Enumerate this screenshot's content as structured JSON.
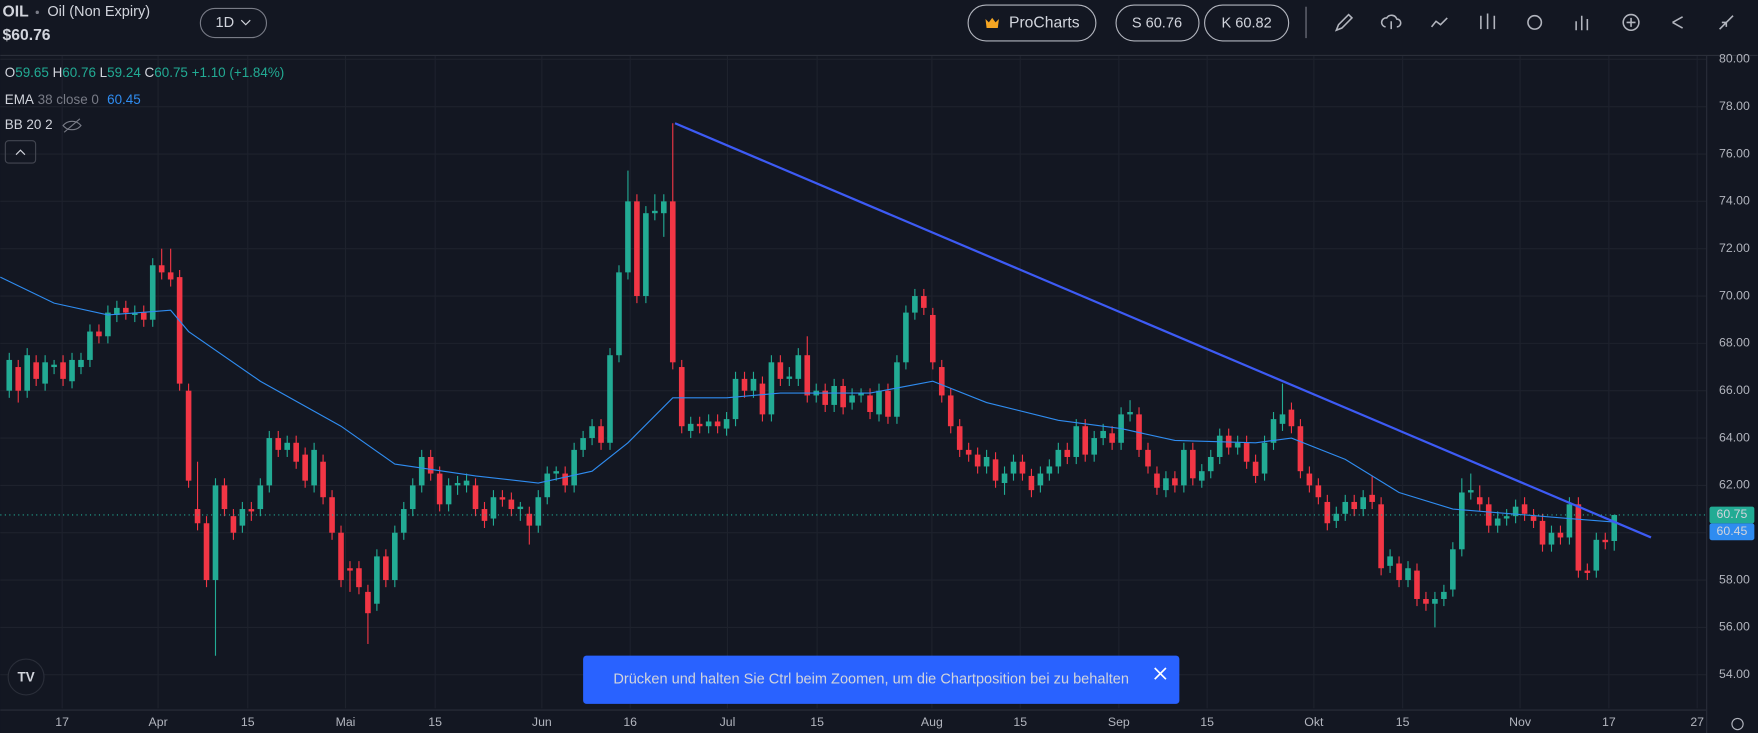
{
  "header": {
    "symbol": "OIL",
    "name": "Oil (Non Expiry)",
    "price": "$60.76",
    "interval": "1D",
    "procharts": "ProCharts",
    "sell": "S 60.76",
    "buy": "K 60.82"
  },
  "legend": {
    "labels": [
      "O",
      "H",
      "L",
      "C"
    ],
    "change": "+1.10 (+1.84%)",
    "ema_name": "EMA",
    "ema_params": "38 close 0",
    "bb": "BB 20 2"
  },
  "toast": "Drücken und halten Sie Ctrl beim Zoomen, um die Chartposition bei zu behalten",
  "chart_data": {
    "type": "candlestick",
    "up_color": "#22ab94",
    "down_color": "#f23645",
    "xlim": [
      -1,
      189.25
    ],
    "ylim": [
      52.58,
      80.14
    ],
    "grid": true,
    "yticks": [
      {
        "value": 54,
        "label": "54.00"
      },
      {
        "value": 56,
        "label": "56.00"
      },
      {
        "value": 58,
        "label": "58.00"
      },
      {
        "value": 60,
        "label": "60.00"
      },
      {
        "value": 62,
        "label": "62.00"
      },
      {
        "value": 64,
        "label": "64.00"
      },
      {
        "value": 66,
        "label": "66.00"
      },
      {
        "value": 68,
        "label": "68.00"
      },
      {
        "value": 70,
        "label": "70.00"
      },
      {
        "value": 72,
        "label": "72.00"
      },
      {
        "value": 74,
        "label": "74.00"
      },
      {
        "value": 76,
        "label": "76.00"
      },
      {
        "value": 78,
        "label": "78.00"
      },
      {
        "value": 80,
        "label": "80.00"
      }
    ],
    "xticks": [
      {
        "value": 5.9,
        "label": "17"
      },
      {
        "value": 16.6,
        "label": "Apr"
      },
      {
        "value": 26.6,
        "label": "15"
      },
      {
        "value": 37.5,
        "label": "Mai"
      },
      {
        "value": 47.5,
        "label": "15"
      },
      {
        "value": 59.4,
        "label": "Jun"
      },
      {
        "value": 69.25,
        "label": "16"
      },
      {
        "value": 80.1,
        "label": "Jul"
      },
      {
        "value": 90.1,
        "label": "15"
      },
      {
        "value": 102.9,
        "label": "Aug"
      },
      {
        "value": 112.75,
        "label": "15"
      },
      {
        "value": 123.75,
        "label": "Sep"
      },
      {
        "value": 133.6,
        "label": "15"
      },
      {
        "value": 145.5,
        "label": "Okt"
      },
      {
        "value": 155.4,
        "label": "15"
      },
      {
        "value": 168.5,
        "label": "Nov"
      },
      {
        "value": 178.4,
        "label": "17"
      },
      {
        "value": 188.25,
        "label": "27"
      }
    ],
    "candles": [
      [
        66,
        67.6,
        65.7,
        67.3
      ],
      [
        67,
        67.3,
        65.5,
        66
      ],
      [
        66,
        67.8,
        65.7,
        67.5
      ],
      [
        67.2,
        67.5,
        66.2,
        66.5
      ],
      [
        66.3,
        67.5,
        66,
        67.2
      ],
      [
        67,
        67.3,
        66.7,
        67.1
      ],
      [
        67.2,
        67.5,
        66.2,
        66.5
      ],
      [
        66.4,
        67.6,
        66.1,
        67.3
      ],
      [
        67,
        67.6,
        66.7,
        67.3
      ],
      [
        67.3,
        68.8,
        67,
        68.5
      ],
      [
        68.5,
        68.8,
        68,
        68.3
      ],
      [
        68.3,
        69.6,
        68,
        69.3
      ],
      [
        69.2,
        69.8,
        68.9,
        69.5
      ],
      [
        69.5,
        69.8,
        69,
        69.3
      ],
      [
        69.2,
        69.6,
        68.9,
        69.3
      ],
      [
        69.3,
        69.6,
        68.7,
        69
      ],
      [
        69,
        71.6,
        68.7,
        71.3
      ],
      [
        71.3,
        72,
        70.7,
        71
      ],
      [
        71,
        72,
        70.4,
        70.7
      ],
      [
        70.8,
        71.1,
        66,
        66.3
      ],
      [
        66,
        66.3,
        61.9,
        62.2
      ],
      [
        61,
        63,
        60.1,
        60.4
      ],
      [
        60.4,
        60.7,
        57.7,
        58
      ],
      [
        58,
        62.3,
        54.8,
        62
      ],
      [
        62,
        62.3,
        60.7,
        61
      ],
      [
        60.7,
        61,
        59.7,
        60
      ],
      [
        60.3,
        61.3,
        60,
        61
      ],
      [
        61,
        61.3,
        60.5,
        60.9
      ],
      [
        61,
        62.3,
        60.7,
        62
      ],
      [
        62,
        64.3,
        61.7,
        64
      ],
      [
        64,
        64.3,
        63.2,
        63.5
      ],
      [
        63.5,
        64.1,
        63.2,
        63.8
      ],
      [
        63.8,
        64.1,
        62.7,
        63
      ],
      [
        63.3,
        63.6,
        61.9,
        62.2
      ],
      [
        62,
        63.8,
        61.7,
        63.5
      ],
      [
        63,
        63.3,
        61.2,
        61.5
      ],
      [
        61.5,
        61.8,
        59.7,
        60
      ],
      [
        60,
        60.3,
        57.7,
        58
      ],
      [
        58.5,
        58.8,
        57.5,
        58.4
      ],
      [
        58.5,
        58.8,
        57.4,
        57.7
      ],
      [
        57.5,
        57.8,
        55.3,
        56.6
      ],
      [
        57,
        59.3,
        56.7,
        59
      ],
      [
        59,
        59.3,
        57.7,
        58
      ],
      [
        58,
        60.3,
        57.7,
        60
      ],
      [
        60,
        61.3,
        59.7,
        61
      ],
      [
        61,
        62.3,
        60.7,
        62
      ],
      [
        62,
        63.5,
        61.7,
        63.2
      ],
      [
        63.2,
        63.5,
        62.2,
        62.5
      ],
      [
        62.5,
        62.8,
        60.9,
        61.2
      ],
      [
        61.2,
        62.3,
        60.9,
        62
      ],
      [
        62,
        62.4,
        61.6,
        62.1
      ],
      [
        62,
        62.5,
        61.7,
        62.2
      ],
      [
        62,
        62.3,
        60.7,
        61
      ],
      [
        61,
        61.3,
        60.2,
        60.5
      ],
      [
        60.6,
        61.8,
        60.3,
        61.5
      ],
      [
        61.5,
        61.8,
        61.1,
        61.4
      ],
      [
        61.4,
        61.7,
        60.7,
        61
      ],
      [
        61,
        61.3,
        60.5,
        61.1
      ],
      [
        60.8,
        61.1,
        59.5,
        60.3
      ],
      [
        60.3,
        61.8,
        60,
        61.5
      ],
      [
        61.5,
        62.8,
        61.2,
        62.5
      ],
      [
        62.5,
        62.8,
        62.2,
        62.6
      ],
      [
        62.5,
        62.8,
        61.7,
        62
      ],
      [
        62,
        63.8,
        61.7,
        63.5
      ],
      [
        63.5,
        64.3,
        63.2,
        64
      ],
      [
        64,
        64.8,
        63.7,
        64.5
      ],
      [
        64.5,
        64.8,
        63.5,
        63.8
      ],
      [
        63.8,
        67.8,
        63.5,
        67.5
      ],
      [
        67.5,
        71.3,
        67.2,
        71
      ],
      [
        71,
        75.3,
        70.7,
        74
      ],
      [
        74,
        74.3,
        69.7,
        70
      ],
      [
        70,
        73.8,
        69.7,
        73.5
      ],
      [
        73.5,
        74.3,
        73.2,
        73.6
      ],
      [
        73.5,
        74.3,
        72.5,
        74
      ],
      [
        74,
        77.3,
        66.9,
        67.2
      ],
      [
        67,
        67.3,
        64.2,
        64.5
      ],
      [
        64.3,
        64.9,
        64,
        64.6
      ],
      [
        64.6,
        64.9,
        64.2,
        64.5
      ],
      [
        64.5,
        65,
        64.2,
        64.7
      ],
      [
        64.7,
        65,
        64.2,
        64.5
      ],
      [
        64.4,
        65.1,
        64.1,
        64.8
      ],
      [
        64.8,
        66.8,
        64.5,
        66.5
      ],
      [
        66.5,
        66.8,
        65.7,
        66
      ],
      [
        66,
        66.8,
        65.7,
        66.5
      ],
      [
        66.3,
        66.6,
        64.7,
        65
      ],
      [
        65,
        67.5,
        64.7,
        67.2
      ],
      [
        67.2,
        67.5,
        66.2,
        66.5
      ],
      [
        66.5,
        67,
        66.2,
        66.6
      ],
      [
        66.5,
        67.8,
        66.2,
        67.5
      ],
      [
        67.5,
        68.3,
        65.5,
        65.8
      ],
      [
        65.8,
        66.3,
        65.5,
        66
      ],
      [
        66,
        66.3,
        65.1,
        65.4
      ],
      [
        65.4,
        66.5,
        65.1,
        66.2
      ],
      [
        66.2,
        66.5,
        65,
        65.3
      ],
      [
        65.5,
        66.1,
        65.2,
        65.8
      ],
      [
        65.8,
        66.1,
        65.5,
        65.9
      ],
      [
        65.8,
        66.1,
        64.8,
        65.1
      ],
      [
        65,
        66.3,
        64.7,
        66
      ],
      [
        66,
        66.3,
        64.6,
        64.9
      ],
      [
        64.9,
        67.5,
        64.6,
        67.2
      ],
      [
        67.2,
        69.6,
        66.9,
        69.3
      ],
      [
        69.3,
        70.3,
        69,
        70
      ],
      [
        70,
        70.3,
        69.2,
        69.5
      ],
      [
        69.2,
        69.5,
        66.9,
        67.2
      ],
      [
        67,
        67.3,
        65.5,
        65.8
      ],
      [
        65.8,
        66.1,
        64.2,
        64.5
      ],
      [
        64.5,
        64.8,
        63.2,
        63.5
      ],
      [
        63.5,
        63.8,
        63,
        63.3
      ],
      [
        63.3,
        63.6,
        62.5,
        62.8
      ],
      [
        62.8,
        63.5,
        62.5,
        63.2
      ],
      [
        63.1,
        63.4,
        61.9,
        62.2
      ],
      [
        62.1,
        62.8,
        61.6,
        62.5
      ],
      [
        62.5,
        63.3,
        62.2,
        63
      ],
      [
        63,
        63.3,
        62.2,
        62.5
      ],
      [
        62.4,
        62.7,
        61.5,
        61.8
      ],
      [
        62,
        62.8,
        61.7,
        62.5
      ],
      [
        62.5,
        63.1,
        62.2,
        62.8
      ],
      [
        62.8,
        63.8,
        62.5,
        63.5
      ],
      [
        63.5,
        63.8,
        62.9,
        63.2
      ],
      [
        63.2,
        64.8,
        62.9,
        64.5
      ],
      [
        64.5,
        64.8,
        63,
        63.3
      ],
      [
        63.3,
        64.3,
        63,
        64
      ],
      [
        64,
        64.6,
        63.7,
        64.3
      ],
      [
        64.2,
        64.5,
        63.5,
        63.8
      ],
      [
        63.8,
        65.3,
        63.5,
        65
      ],
      [
        65,
        65.6,
        64.7,
        65.1
      ],
      [
        65,
        65.3,
        63.2,
        63.5
      ],
      [
        63.5,
        63.8,
        62.5,
        62.8
      ],
      [
        62.5,
        62.8,
        61.6,
        61.9
      ],
      [
        61.8,
        62.6,
        61.5,
        62.3
      ],
      [
        62.3,
        62.6,
        61.7,
        62
      ],
      [
        62,
        63.8,
        61.7,
        63.5
      ],
      [
        63.5,
        63.8,
        62,
        62.3
      ],
      [
        62.2,
        62.9,
        61.9,
        62.6
      ],
      [
        62.6,
        63.5,
        62.3,
        63.2
      ],
      [
        63.2,
        64.4,
        62.9,
        64.1
      ],
      [
        64.1,
        64.4,
        63.3,
        63.6
      ],
      [
        63.6,
        64.1,
        63.3,
        63.8
      ],
      [
        63.8,
        64.1,
        62.7,
        63
      ],
      [
        63,
        63.3,
        62.1,
        62.4
      ],
      [
        62.5,
        64.1,
        62.2,
        63.8
      ],
      [
        63.8,
        65.1,
        63.5,
        64.8
      ],
      [
        64.6,
        66.3,
        64.3,
        65
      ],
      [
        65.2,
        65.5,
        64.2,
        64.5
      ],
      [
        64.5,
        64.8,
        62.3,
        62.6
      ],
      [
        62.5,
        62.8,
        61.7,
        62
      ],
      [
        62,
        62.3,
        61.2,
        61.5
      ],
      [
        61.3,
        61.6,
        60.1,
        60.4
      ],
      [
        60.5,
        61.1,
        60.2,
        60.8
      ],
      [
        60.8,
        61.6,
        60.5,
        61.3
      ],
      [
        61.3,
        61.6,
        60.7,
        61
      ],
      [
        61,
        61.8,
        60.7,
        61.5
      ],
      [
        61.6,
        62.4,
        61,
        61.3
      ],
      [
        61.2,
        61.5,
        58.2,
        58.5
      ],
      [
        58.6,
        59.3,
        58.3,
        59
      ],
      [
        58.7,
        59,
        57.7,
        58
      ],
      [
        58,
        58.8,
        57.7,
        58.5
      ],
      [
        58.4,
        58.7,
        56.9,
        57.2
      ],
      [
        57.2,
        57.5,
        56.7,
        57
      ],
      [
        57,
        57.5,
        56,
        57.2
      ],
      [
        57.2,
        57.8,
        56.9,
        57.5
      ],
      [
        57.6,
        59.6,
        57.3,
        59.3
      ],
      [
        59.3,
        62.3,
        59,
        61.7
      ],
      [
        61.7,
        62.5,
        61.4,
        61.8
      ],
      [
        61.5,
        62,
        60.9,
        61.2
      ],
      [
        61.2,
        61.5,
        60,
        60.3
      ],
      [
        60.3,
        60.9,
        60,
        60.6
      ],
      [
        60.6,
        61,
        60.3,
        60.7
      ],
      [
        60.7,
        61.4,
        60.4,
        61.1
      ],
      [
        61.2,
        61.5,
        60.5,
        60.8
      ],
      [
        60.7,
        61,
        60.2,
        60.5
      ],
      [
        60.5,
        60.8,
        59.2,
        59.5
      ],
      [
        59.5,
        60.3,
        59.2,
        60
      ],
      [
        60,
        60.3,
        59.5,
        59.8
      ],
      [
        59.8,
        61.5,
        59.5,
        61.2
      ],
      [
        61.2,
        61.5,
        58.1,
        58.4
      ],
      [
        58.4,
        58.7,
        58,
        58.3
      ],
      [
        58.4,
        60,
        58.1,
        59.7
      ],
      [
        59.7,
        60,
        59.3,
        59.6
      ],
      [
        59.65,
        60.76,
        59.24,
        60.75
      ]
    ],
    "ema": {
      "color": "#2f8cf0",
      "x": [
        -1,
        5,
        11,
        18,
        20,
        28,
        37,
        43,
        52,
        59,
        65,
        69,
        74,
        80,
        86,
        96,
        103,
        109,
        117,
        124,
        130,
        139,
        143,
        149,
        155,
        161,
        174,
        179
      ],
      "values": [
        70.8,
        69.7,
        69.2,
        69.4,
        68.5,
        66.4,
        64.5,
        62.9,
        62.4,
        62.1,
        62.6,
        63.8,
        65.7,
        65.7,
        65.9,
        65.9,
        66.4,
        65.5,
        64.75,
        64.4,
        63.9,
        63.8,
        64,
        63.1,
        61.7,
        61,
        60.6,
        60.45
      ]
    },
    "trendline": {
      "color": "#3d5bf5",
      "x": [
        74.25,
        183.1
      ],
      "values": [
        77.3,
        59.8
      ]
    }
  }
}
